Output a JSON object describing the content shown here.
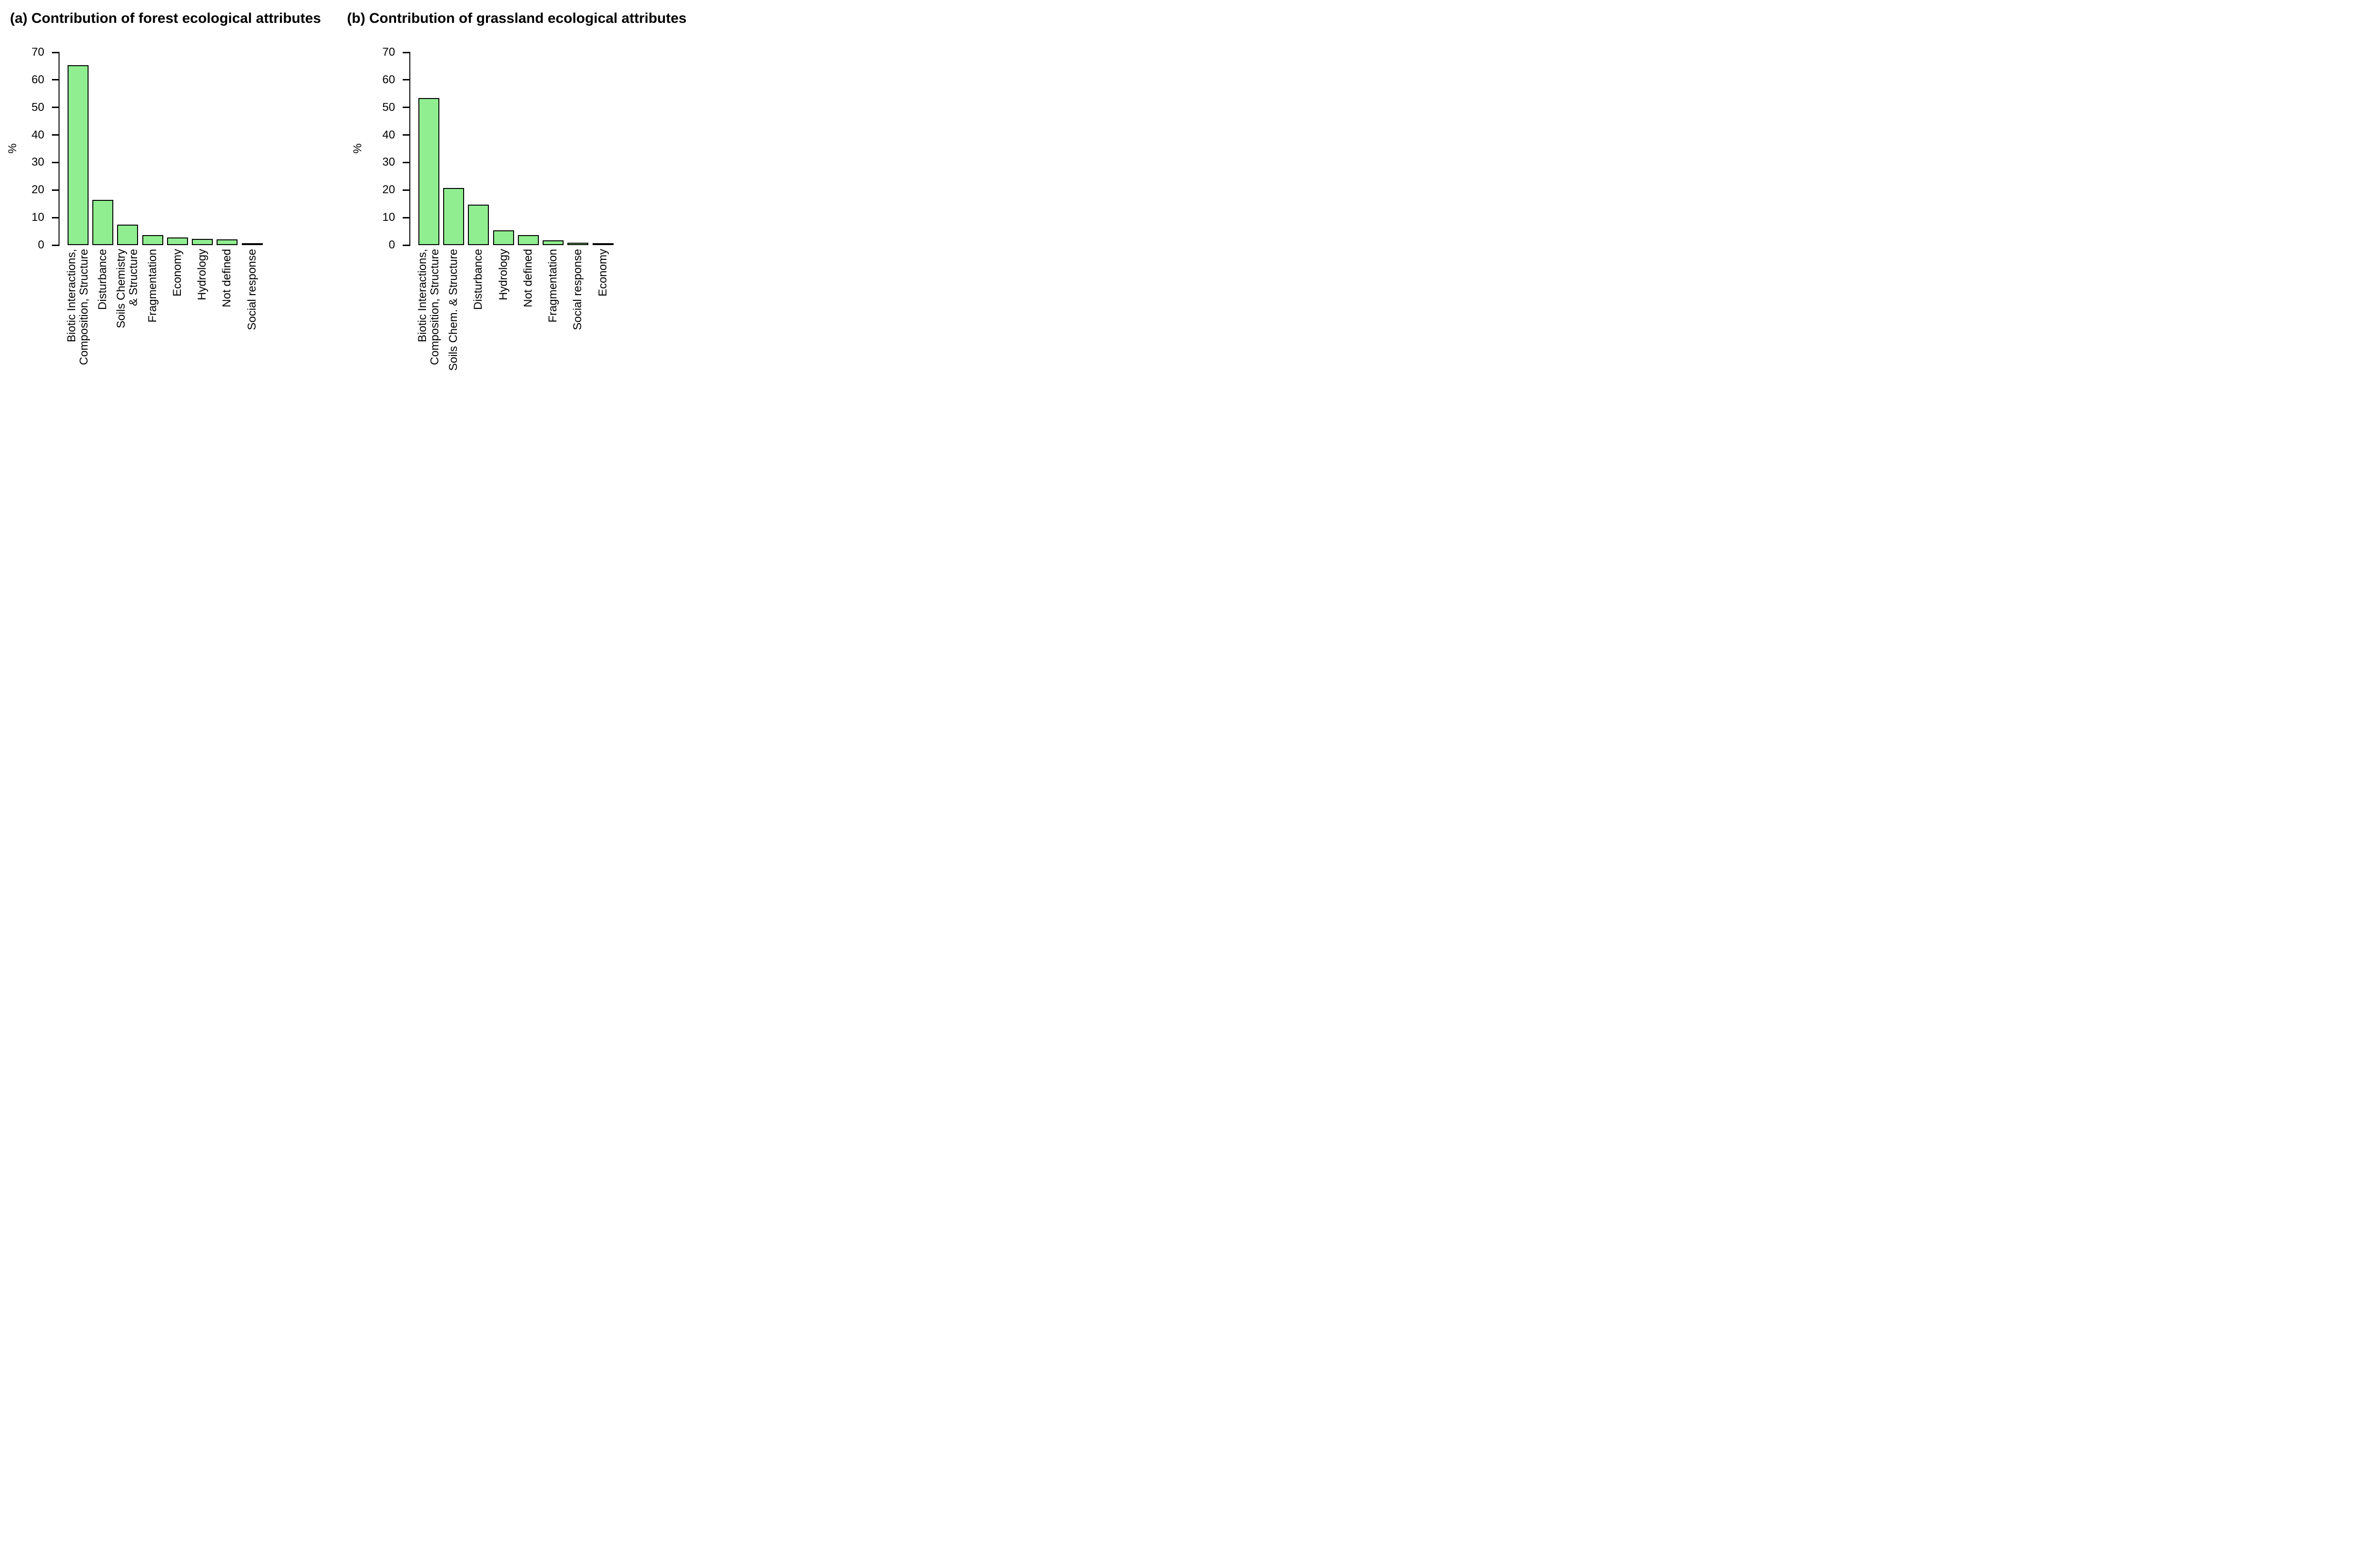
{
  "figure": {
    "background": "#ffffff",
    "bar_fill": "#90EE90",
    "bar_border": "#000000",
    "text_color": "#000000"
  },
  "chart_data": [
    {
      "type": "bar",
      "panel": "a",
      "title": "(a) Contribution of forest ecological attributes",
      "xlabel": "",
      "ylabel": "%",
      "ylim": [
        0,
        70
      ],
      "yticks": [
        0,
        10,
        20,
        30,
        40,
        50,
        60,
        70
      ],
      "grid": false,
      "legend": null,
      "bar_color": "#90EE90",
      "bar_border_color": "#000000",
      "categories": [
        "Biotic Interactions,\nComposition, Structure",
        "Disturbance",
        "Soils Chemistry\n& Structure",
        "Fragmentation",
        "Economy",
        "Hydrology",
        "Not defined",
        "Social response"
      ],
      "values": [
        65.3,
        16.4,
        7.5,
        3.7,
        2.7,
        2.2,
        2.0,
        0.3
      ]
    },
    {
      "type": "bar",
      "panel": "b",
      "title": "(b) Contribution of grassland ecological attributes",
      "xlabel": "",
      "ylabel": "%",
      "ylim": [
        0,
        70
      ],
      "yticks": [
        0,
        10,
        20,
        30,
        40,
        50,
        60,
        70
      ],
      "grid": false,
      "legend": null,
      "bar_color": "#90EE90",
      "bar_border_color": "#000000",
      "categories": [
        "Biotic Interactions,\nComposition, Structure",
        "Soils Chem. & Structure",
        "Disturbance",
        "Hydrology",
        "Not defined",
        "Fragmentation",
        "Social response",
        "Economy"
      ],
      "values": [
        53.4,
        20.7,
        14.7,
        5.3,
        3.6,
        1.8,
        0.7,
        0.1
      ]
    }
  ]
}
